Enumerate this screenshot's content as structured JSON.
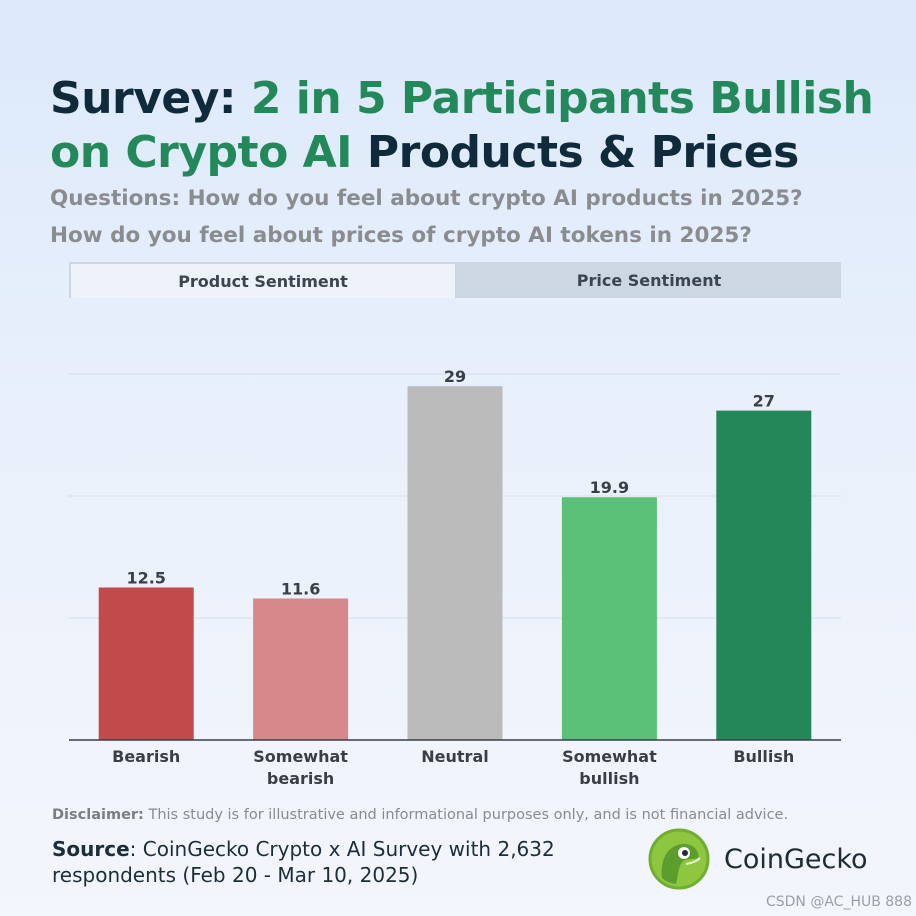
{
  "header": {
    "title_dark_1": "Survey: ",
    "title_green": "2 in 5 Participants Bullish on Crypto AI",
    "title_dark_2": " Products & Prices",
    "subtitle_line1": "Questions: How do you feel about crypto AI products in 2025?",
    "subtitle_line2": "How do you feel about prices of crypto AI tokens in 2025?"
  },
  "tabs": [
    {
      "label": "Product Sentiment",
      "active": true
    },
    {
      "label": "Price Sentiment",
      "active": false
    }
  ],
  "chart_data": {
    "type": "bar",
    "categories": [
      "Bearish",
      "Somewhat bearish",
      "Neutral",
      "Somewhat bullish",
      "Bullish"
    ],
    "values": [
      12.5,
      11.6,
      29,
      19.9,
      27
    ],
    "value_labels": [
      "12.5",
      "11.6",
      "29",
      "19.9",
      "27"
    ],
    "colors": [
      "#c24a4a",
      "#d6888a",
      "#bbbbbb",
      "#5cc178",
      "#24875a"
    ],
    "ylim": [
      0,
      30
    ],
    "grid": true,
    "title": "",
    "xlabel": "",
    "ylabel": ""
  },
  "footer": {
    "disclaimer_label": "Disclaimer:",
    "disclaimer_text": " This study is for illustrative and informational purposes only, and is not financial advice.",
    "source_label": "Source",
    "source_text": ": CoinGecko Crypto x AI Survey with 2,632 respondents (Feb 20 - Mar 10, 2025)",
    "brand": "CoinGecko",
    "watermark": "CSDN @AC_HUB 888"
  }
}
